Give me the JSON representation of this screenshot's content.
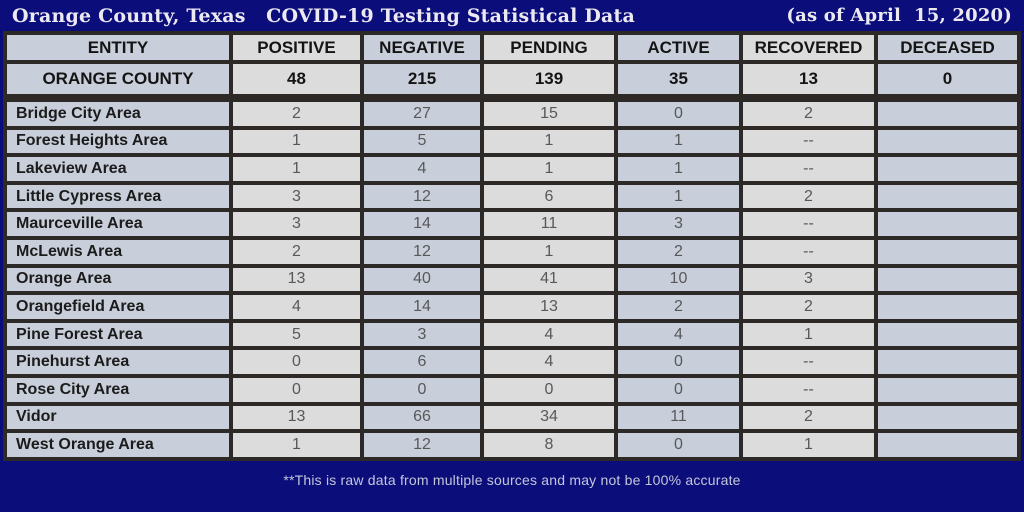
{
  "title_bar": {
    "title": "Orange County, Texas   COVID-19 Testing Statistical Data",
    "date_note": "(as of April  15, 2020)"
  },
  "colors": {
    "background_navy": "#0b0e7a",
    "grid_border": "#2c2926",
    "cell_gray": "#dcdcdc",
    "cell_blue": "#c8cfda",
    "header_text": "#141414",
    "number_text": "#58585a",
    "title_text": "#ece9f2",
    "footer_text": "#c4c6da"
  },
  "table": {
    "columns": [
      "ENTITY",
      "POSITIVE",
      "NEGATIVE",
      "PENDING",
      "ACTIVE",
      "RECOVERED",
      "DECEASED"
    ],
    "county": {
      "entity": "ORANGE COUNTY",
      "values": [
        "48",
        "215",
        "139",
        "35",
        "13",
        "0"
      ]
    },
    "rows": [
      {
        "entity": "Bridge City Area",
        "values": [
          "2",
          "27",
          "15",
          "0",
          "2",
          ""
        ]
      },
      {
        "entity": "Forest Heights Area",
        "values": [
          "1",
          "5",
          "1",
          "1",
          "--",
          ""
        ]
      },
      {
        "entity": "Lakeview Area",
        "values": [
          "1",
          "4",
          "1",
          "1",
          "--",
          ""
        ]
      },
      {
        "entity": "Little Cypress Area",
        "values": [
          "3",
          "12",
          "6",
          "1",
          "2",
          ""
        ]
      },
      {
        "entity": "Maurceville Area",
        "values": [
          "3",
          "14",
          "11",
          "3",
          "--",
          ""
        ]
      },
      {
        "entity": "McLewis Area",
        "values": [
          "2",
          "12",
          "1",
          "2",
          "--",
          ""
        ]
      },
      {
        "entity": "Orange Area",
        "values": [
          "13",
          "40",
          "41",
          "10",
          "3",
          ""
        ]
      },
      {
        "entity": "Orangefield Area",
        "values": [
          "4",
          "14",
          "13",
          "2",
          "2",
          ""
        ]
      },
      {
        "entity": "Pine Forest Area",
        "values": [
          "5",
          "3",
          "4",
          "4",
          "1",
          ""
        ]
      },
      {
        "entity": "Pinehurst Area",
        "values": [
          "0",
          "6",
          "4",
          "0",
          "--",
          ""
        ]
      },
      {
        "entity": "Rose City Area",
        "values": [
          "0",
          "0",
          "0",
          "0",
          "--",
          ""
        ]
      },
      {
        "entity": "Vidor",
        "values": [
          "13",
          "66",
          "34",
          "11",
          "2",
          ""
        ]
      },
      {
        "entity": "West Orange Area",
        "values": [
          "1",
          "12",
          "8",
          "0",
          "1",
          ""
        ]
      }
    ]
  },
  "footer": {
    "note": "**This is raw data from multiple sources and may not be 100% accurate"
  },
  "chart_data": {
    "type": "table",
    "title": "Orange County, Texas COVID-19 Testing Statistical Data (as of April 15, 2020)",
    "columns": [
      "ENTITY",
      "POSITIVE",
      "NEGATIVE",
      "PENDING",
      "ACTIVE",
      "RECOVERED",
      "DECEASED"
    ],
    "rows": [
      [
        "ORANGE COUNTY",
        48,
        215,
        139,
        35,
        13,
        0
      ],
      [
        "Bridge City Area",
        2,
        27,
        15,
        0,
        2,
        null
      ],
      [
        "Forest Heights Area",
        1,
        5,
        1,
        1,
        "--",
        null
      ],
      [
        "Lakeview Area",
        1,
        4,
        1,
        1,
        "--",
        null
      ],
      [
        "Little Cypress Area",
        3,
        12,
        6,
        1,
        2,
        null
      ],
      [
        "Maurceville Area",
        3,
        14,
        11,
        3,
        "--",
        null
      ],
      [
        "McLewis Area",
        2,
        12,
        1,
        2,
        "--",
        null
      ],
      [
        "Orange Area",
        13,
        40,
        41,
        10,
        3,
        null
      ],
      [
        "Orangefield Area",
        4,
        14,
        13,
        2,
        2,
        null
      ],
      [
        "Pine Forest Area",
        5,
        3,
        4,
        4,
        1,
        null
      ],
      [
        "Pinehurst Area",
        0,
        6,
        4,
        0,
        "--",
        null
      ],
      [
        "Rose City Area",
        0,
        0,
        0,
        0,
        "--",
        null
      ],
      [
        "Vidor",
        13,
        66,
        34,
        11,
        2,
        null
      ],
      [
        "West Orange Area",
        1,
        12,
        8,
        0,
        1,
        null
      ]
    ],
    "annotations": [
      "**This is raw data from multiple sources and may not be 100% accurate"
    ],
    "layout_hints": {
      "grid": "thick dark borders",
      "column_fill_alternation": [
        "blue",
        "gray"
      ]
    }
  }
}
